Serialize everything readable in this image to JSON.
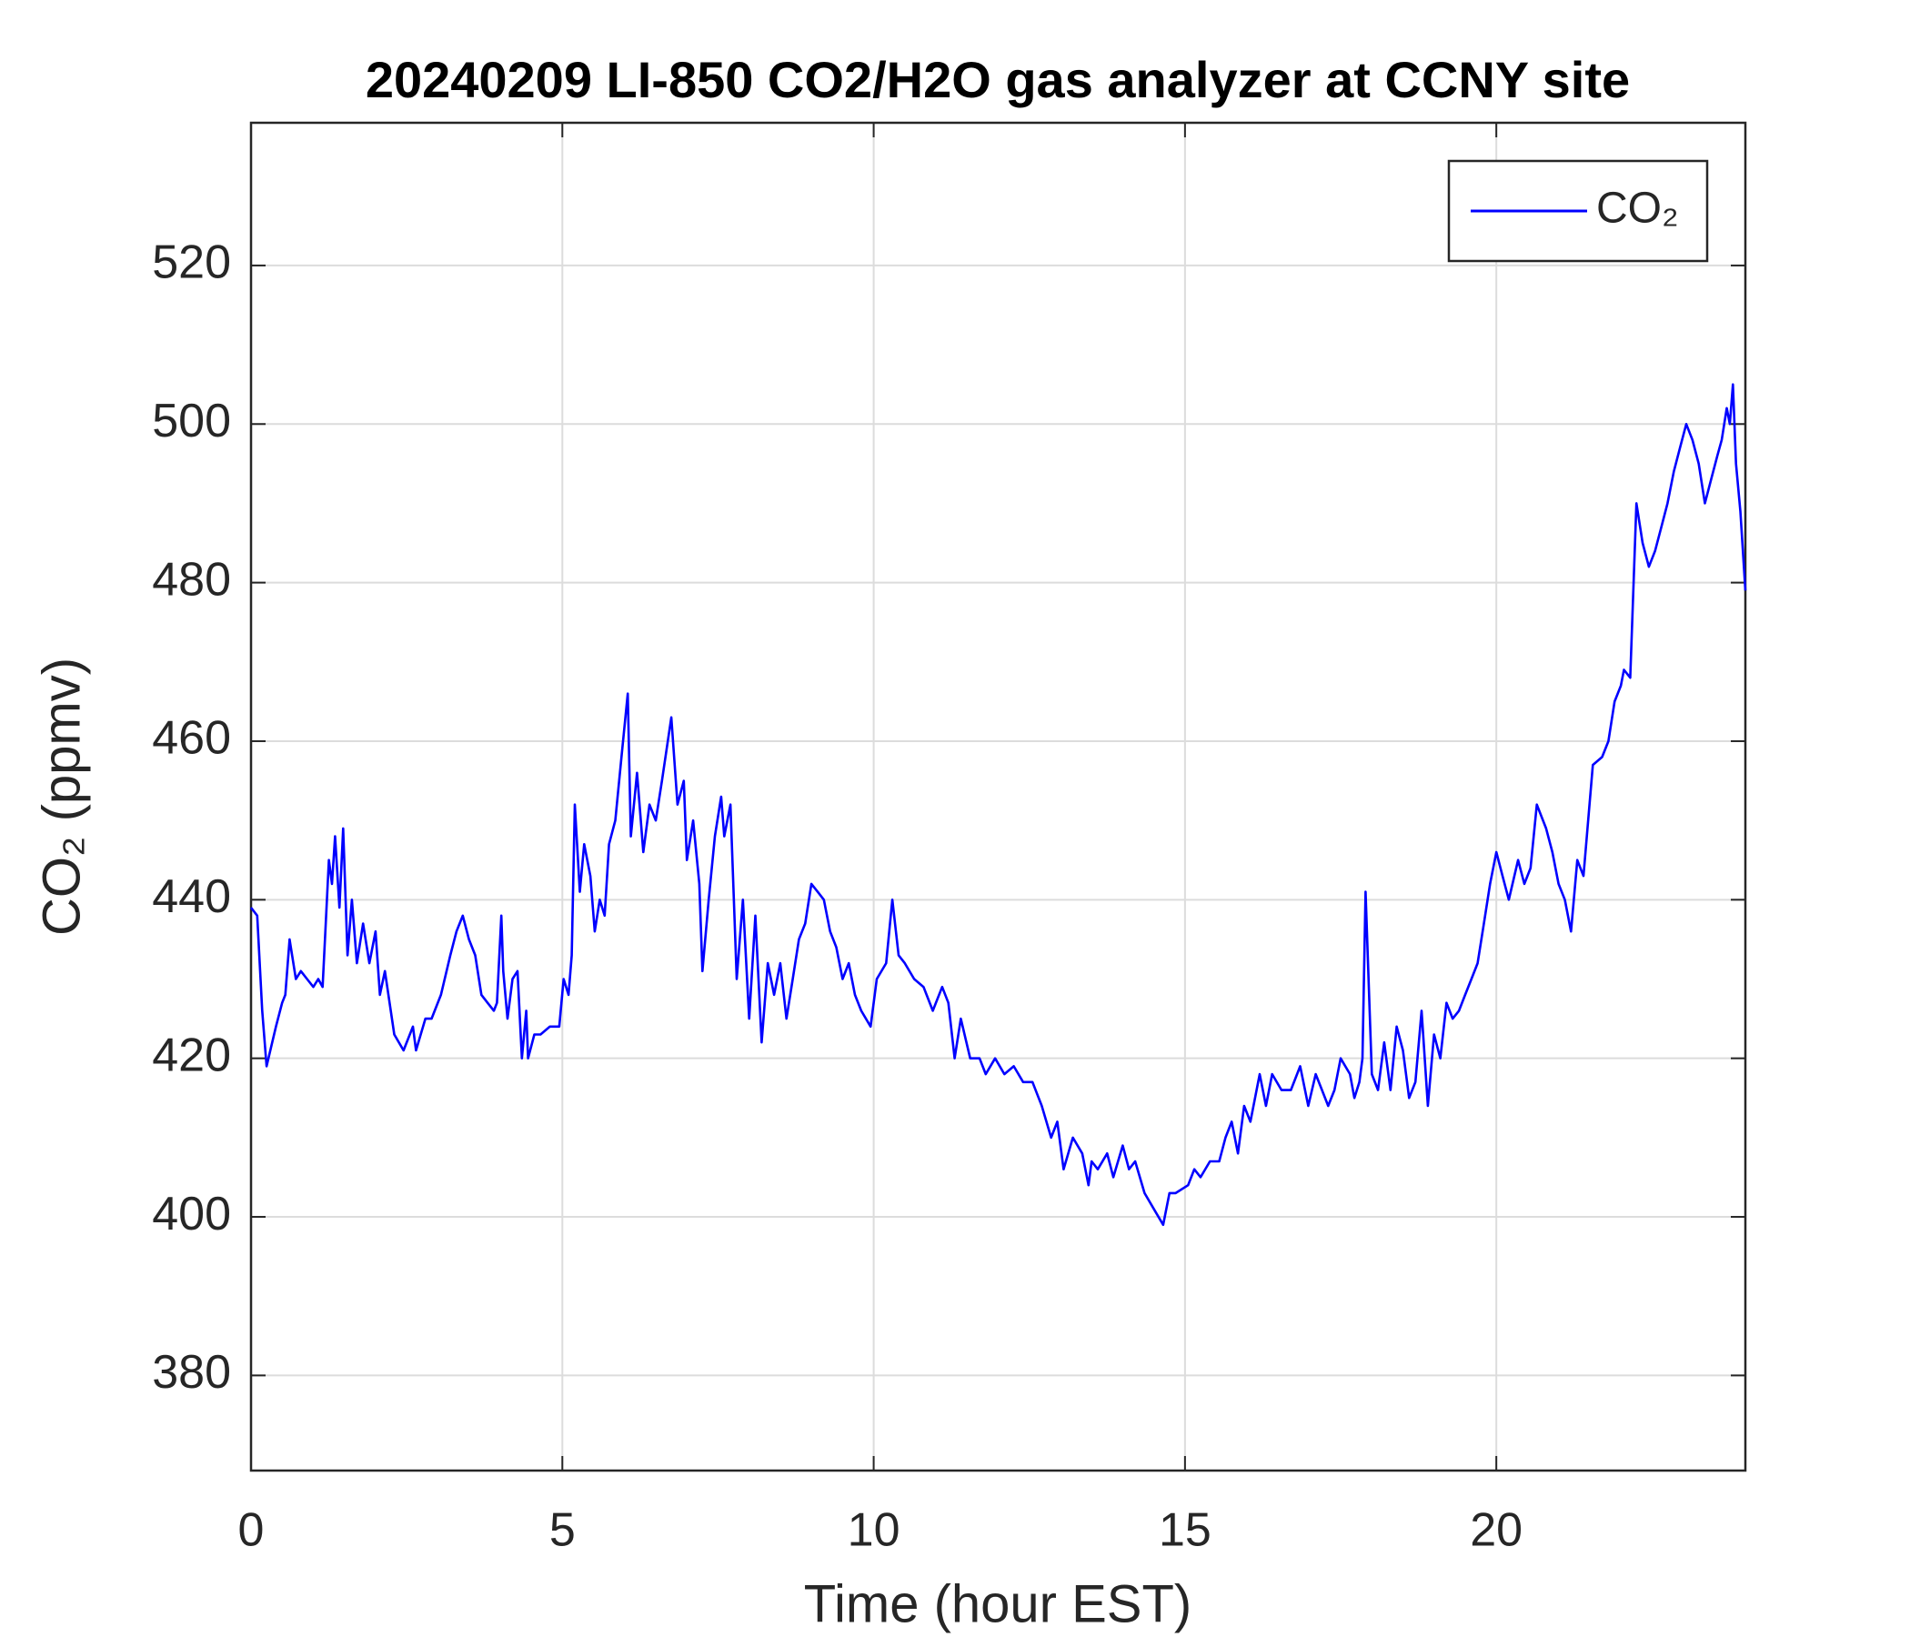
{
  "chart_data": {
    "type": "line",
    "title": "20240209 LI-850 CO2/H2O gas analyzer at CCNY site",
    "x_label": "Time (hour EST)",
    "y_label": "CO₂ (ppmv)",
    "x": [
      0,
      0.1,
      0.18,
      0.25,
      0.4,
      0.5,
      0.55,
      0.62,
      0.72,
      0.8,
      0.9,
      1.0,
      1.08,
      1.15,
      1.25,
      1.3,
      1.35,
      1.42,
      1.48,
      1.55,
      1.62,
      1.7,
      1.8,
      1.9,
      2.0,
      2.07,
      2.15,
      2.3,
      2.45,
      2.6,
      2.65,
      2.8,
      2.9,
      3.05,
      3.2,
      3.3,
      3.4,
      3.5,
      3.6,
      3.7,
      3.8,
      3.9,
      3.95,
      4.02,
      4.05,
      4.12,
      4.2,
      4.28,
      4.35,
      4.42,
      4.45,
      4.55,
      4.65,
      4.8,
      4.95,
      5.02,
      5.1,
      5.15,
      5.2,
      5.28,
      5.35,
      5.45,
      5.52,
      5.6,
      5.68,
      5.75,
      5.85,
      5.95,
      6.05,
      6.1,
      6.2,
      6.3,
      6.4,
      6.5,
      6.6,
      6.75,
      6.85,
      6.95,
      7.0,
      7.1,
      7.2,
      7.25,
      7.35,
      7.45,
      7.55,
      7.6,
      7.7,
      7.8,
      7.9,
      8.0,
      8.1,
      8.2,
      8.3,
      8.4,
      8.5,
      8.6,
      8.7,
      8.8,
      8.9,
      9.0,
      9.1,
      9.2,
      9.3,
      9.4,
      9.5,
      9.6,
      9.7,
      9.8,
      9.95,
      10.05,
      10.2,
      10.3,
      10.4,
      10.5,
      10.65,
      10.8,
      10.95,
      11.1,
      11.2,
      11.3,
      11.4,
      11.55,
      11.7,
      11.8,
      11.95,
      12.1,
      12.25,
      12.4,
      12.55,
      12.7,
      12.85,
      12.95,
      13.05,
      13.2,
      13.35,
      13.45,
      13.5,
      13.6,
      13.75,
      13.85,
      14.0,
      14.1,
      14.2,
      14.35,
      14.5,
      14.65,
      14.75,
      14.85,
      15.05,
      15.15,
      15.25,
      15.4,
      15.55,
      15.65,
      15.75,
      15.85,
      15.95,
      16.05,
      16.2,
      16.3,
      16.4,
      16.55,
      16.7,
      16.85,
      16.98,
      17.1,
      17.2,
      17.3,
      17.4,
      17.5,
      17.65,
      17.72,
      17.8,
      17.85,
      17.9,
      18.0,
      18.1,
      18.2,
      18.3,
      18.4,
      18.5,
      18.6,
      18.7,
      18.8,
      18.9,
      19.0,
      19.1,
      19.2,
      19.3,
      19.4,
      19.5,
      19.6,
      19.7,
      19.8,
      19.9,
      20.0,
      20.1,
      20.2,
      20.35,
      20.45,
      20.55,
      20.65,
      20.8,
      20.9,
      21.0,
      21.1,
      21.2,
      21.3,
      21.4,
      21.55,
      21.7,
      21.8,
      21.9,
      22.0,
      22.05,
      22.15,
      22.25,
      22.35,
      22.45,
      22.55,
      22.65,
      22.75,
      22.85,
      22.95,
      23.05,
      23.15,
      23.25,
      23.35,
      23.45,
      23.55,
      23.62,
      23.7,
      23.75,
      23.8,
      23.85,
      23.92,
      24.0
    ],
    "series": [
      {
        "name": "CO₂",
        "color": "#0000ff",
        "values": [
          439,
          438,
          426,
          419,
          424,
          427,
          428,
          435,
          430,
          431,
          430,
          429,
          430,
          429,
          445,
          442,
          448,
          439,
          449,
          433,
          440,
          432,
          437,
          432,
          436,
          428,
          431,
          423,
          421,
          424,
          421,
          425,
          425,
          428,
          433,
          436,
          438,
          435,
          433,
          428,
          427,
          426,
          427,
          438,
          431,
          425,
          430,
          431,
          420,
          426,
          420,
          423,
          423,
          424,
          424,
          430,
          428,
          433,
          452,
          441,
          447,
          443,
          436,
          440,
          438,
          447,
          450,
          458,
          466,
          448,
          456,
          446,
          452,
          450,
          455,
          463,
          452,
          455,
          445,
          450,
          442,
          431,
          440,
          448,
          453,
          448,
          452,
          430,
          440,
          425,
          438,
          422,
          432,
          428,
          432,
          425,
          430,
          435,
          437,
          442,
          441,
          440,
          436,
          434,
          430,
          432,
          428,
          426,
          424,
          430,
          432,
          440,
          433,
          432,
          430,
          429,
          426,
          429,
          427,
          420,
          425,
          420,
          420,
          418,
          420,
          418,
          419,
          417,
          417,
          414,
          410,
          412,
          406,
          410,
          408,
          404,
          407,
          406,
          408,
          405,
          409,
          406,
          407,
          403,
          401,
          399,
          403,
          403,
          404,
          406,
          405,
          407,
          407,
          410,
          412,
          408,
          414,
          412,
          418,
          414,
          418,
          416,
          416,
          419,
          414,
          418,
          416,
          414,
          416,
          420,
          418,
          415,
          417,
          420,
          441,
          418,
          416,
          422,
          416,
          424,
          421,
          415,
          417,
          426,
          414,
          423,
          420,
          427,
          425,
          426,
          428,
          430,
          432,
          437,
          442,
          446,
          443,
          440,
          445,
          442,
          444,
          452,
          449,
          446,
          442,
          440,
          436,
          445,
          443,
          457,
          458,
          460,
          465,
          467,
          469,
          468,
          490,
          485,
          482,
          484,
          487,
          490,
          494,
          497,
          500,
          498,
          495,
          490,
          493,
          496,
          498,
          502,
          500,
          505,
          495,
          489,
          479
        ]
      }
    ],
    "xlim": [
      0,
      24
    ],
    "ylim": [
      368,
      538
    ],
    "xticks": [
      0,
      5,
      10,
      15,
      20
    ],
    "yticks": [
      380,
      400,
      420,
      440,
      460,
      480,
      500,
      520
    ],
    "grid": true,
    "legend": "upper-right"
  }
}
